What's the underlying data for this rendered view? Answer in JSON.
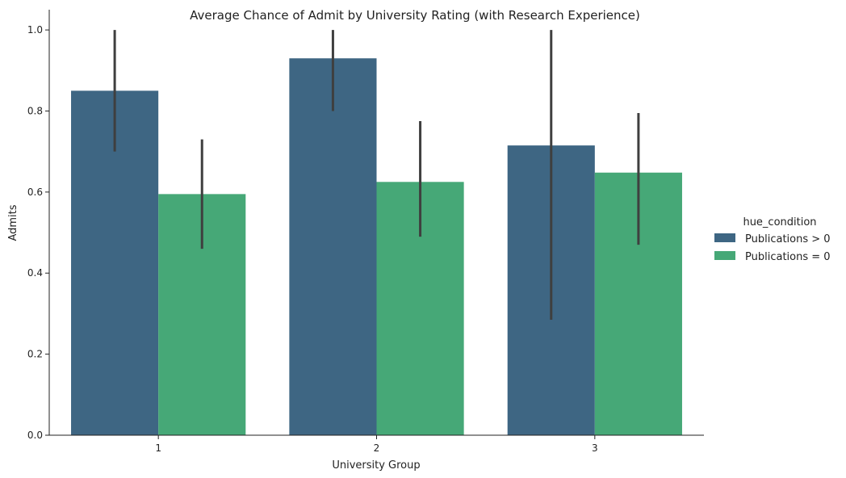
{
  "chart_data": {
    "type": "bar",
    "title": "Average Chance of Admit by University Rating (with Research Experience)",
    "xlabel": "University Group",
    "ylabel": "Admits",
    "categories": [
      "1",
      "2",
      "3"
    ],
    "ylim": [
      0,
      1.05
    ],
    "yticks": [
      0.0,
      0.2,
      0.4,
      0.6,
      0.8,
      1.0
    ],
    "ytick_labels": [
      "0.0",
      "0.2",
      "0.4",
      "0.6",
      "0.8",
      "1.0"
    ],
    "grid": false,
    "legend": {
      "title": "hue_condition",
      "position": "right"
    },
    "series": [
      {
        "name": "Publications > 0",
        "color": "#3e6683",
        "values": [
          0.85,
          0.93,
          0.715
        ],
        "error_low": [
          0.7,
          0.8,
          0.285
        ],
        "error_high": [
          1.0,
          1.0,
          1.0
        ]
      },
      {
        "name": "Publications = 0",
        "color": "#46a877",
        "values": [
          0.595,
          0.625,
          0.648
        ],
        "error_low": [
          0.46,
          0.49,
          0.47
        ],
        "error_high": [
          0.73,
          0.775,
          0.795
        ]
      }
    ],
    "error_bar_color": "#3f3f3f"
  }
}
